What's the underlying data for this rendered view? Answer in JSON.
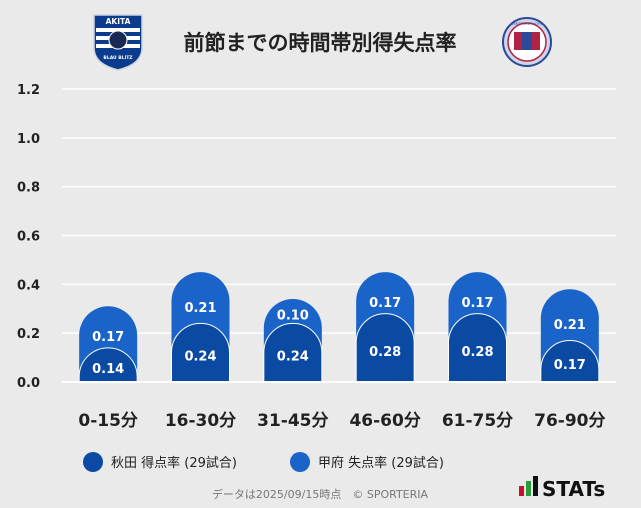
{
  "chart_data": {
    "type": "bar",
    "title": "前節までの時間帯別得失点率",
    "categories": [
      "0-15分",
      "16-30分",
      "31-45分",
      "46-60分",
      "61-75分",
      "76-90分"
    ],
    "series": [
      {
        "name": "秋田 得点率 (29試合)",
        "values": [
          0.14,
          0.24,
          0.24,
          0.28,
          0.28,
          0.17
        ],
        "color": "#0b4aa2"
      },
      {
        "name": "甲府 失点率 (29試合)",
        "values": [
          0.17,
          0.21,
          0.1,
          0.17,
          0.17,
          0.21
        ],
        "color": "#1a63c8"
      }
    ],
    "yticks": [
      "0.0",
      "0.2",
      "0.4",
      "0.6",
      "0.8",
      "1.0",
      "1.2"
    ],
    "ylim": [
      0,
      1.2
    ],
    "stacked": true,
    "grid": true,
    "legend": "bottom"
  },
  "logos": {
    "left": {
      "top_text": "AKITA",
      "bottom_text": "BLAU BLITZ"
    },
    "right": {
      "text": "VENTFORET KOFU"
    }
  },
  "footer": "データは2025/09/15時点　© SPORTERIA",
  "brand": "STATs",
  "colors": {
    "background": "#eaeaea",
    "gridline": "#ffffff",
    "series1": "#0b4aa2",
    "series2": "#1a63c8"
  }
}
